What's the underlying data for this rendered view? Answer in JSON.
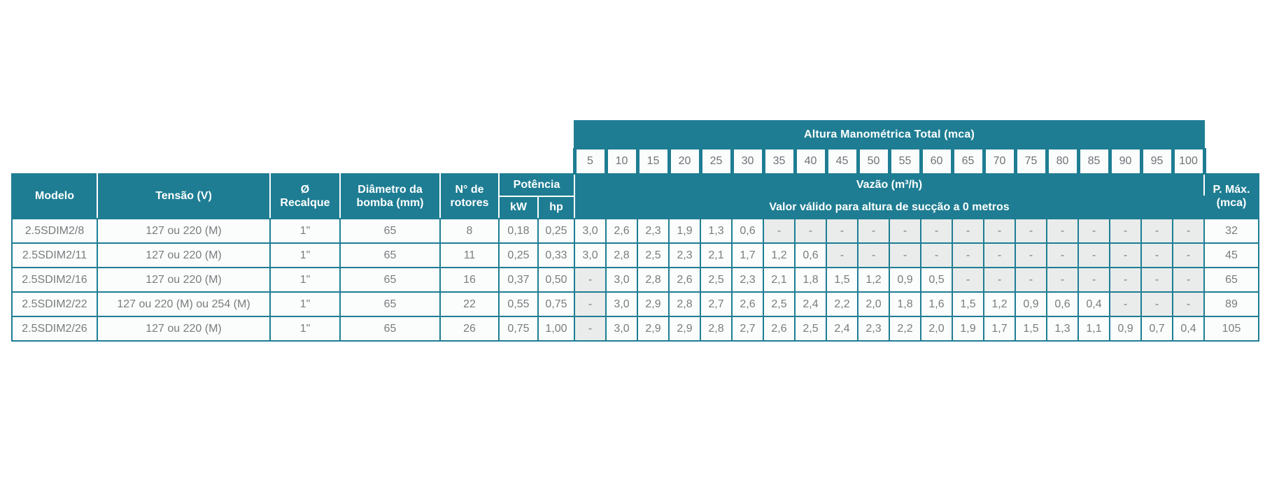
{
  "table": {
    "altura_header": "Altura Manométrica Total (mca)",
    "tick_values": [
      "5",
      "10",
      "15",
      "20",
      "25",
      "30",
      "35",
      "40",
      "45",
      "50",
      "55",
      "60",
      "65",
      "70",
      "75",
      "80",
      "85",
      "90",
      "95",
      "100"
    ],
    "columns": {
      "modelo": "Modelo",
      "tensao": "Tensão (V)",
      "recalque_line1": "Ø",
      "recalque_line2": "Recalque",
      "diametro_line1": "Diâmetro da",
      "diametro_line2": "bomba (mm)",
      "rotores_line1": "N° de",
      "rotores_line2": "rotores",
      "potencia": "Potência",
      "kw": "kW",
      "hp": "hp",
      "vazao": "Vazão (m³/h)",
      "vazao_sub": "Valor válido para altura de sucção a 0 metros",
      "pmax_line1": "P. Máx.",
      "pmax_line2": "(mca)"
    },
    "rows": [
      {
        "modelo": "2.5SDIM2/8",
        "tensao": "127 ou 220 (M)",
        "recalque": "1\"",
        "diametro": "65",
        "rotores": "8",
        "kw": "0,18",
        "hp": "0,25",
        "vazao": [
          "3,0",
          "2,6",
          "2,3",
          "1,9",
          "1,3",
          "0,6",
          "-",
          "-",
          "-",
          "-",
          "-",
          "-",
          "-",
          "-",
          "-",
          "-",
          "-",
          "-",
          "-",
          "-"
        ],
        "pmax": "32"
      },
      {
        "modelo": "2.5SDIM2/11",
        "tensao": "127 ou 220 (M)",
        "recalque": "1\"",
        "diametro": "65",
        "rotores": "11",
        "kw": "0,25",
        "hp": "0,33",
        "vazao": [
          "3,0",
          "2,8",
          "2,5",
          "2,3",
          "2,1",
          "1,7",
          "1,2",
          "0,6",
          "-",
          "-",
          "-",
          "-",
          "-",
          "-",
          "-",
          "-",
          "-",
          "-",
          "-",
          "-"
        ],
        "pmax": "45"
      },
      {
        "modelo": "2.5SDIM2/16",
        "tensao": "127 ou 220 (M)",
        "recalque": "1\"",
        "diametro": "65",
        "rotores": "16",
        "kw": "0,37",
        "hp": "0,50",
        "vazao": [
          "-",
          "3,0",
          "2,8",
          "2,6",
          "2,5",
          "2,3",
          "2,1",
          "1,8",
          "1,5",
          "1,2",
          "0,9",
          "0,5",
          "-",
          "-",
          "-",
          "-",
          "-",
          "-",
          "-",
          "-"
        ],
        "pmax": "65"
      },
      {
        "modelo": "2.5SDIM2/22",
        "tensao": "127 ou 220 (M) ou 254 (M)",
        "recalque": "1\"",
        "diametro": "65",
        "rotores": "22",
        "kw": "0,55",
        "hp": "0,75",
        "vazao": [
          "-",
          "3,0",
          "2,9",
          "2,8",
          "2,7",
          "2,6",
          "2,5",
          "2,4",
          "2,2",
          "2,0",
          "1,8",
          "1,6",
          "1,5",
          "1,2",
          "0,9",
          "0,6",
          "0,4",
          "-",
          "-",
          "-"
        ],
        "pmax": "89"
      },
      {
        "modelo": "2.5SDIM2/26",
        "tensao": "127 ou 220 (M)",
        "recalque": "1\"",
        "diametro": "65",
        "rotores": "26",
        "kw": "0,75",
        "hp": "1,00",
        "vazao": [
          "-",
          "3,0",
          "2,9",
          "2,9",
          "2,8",
          "2,7",
          "2,6",
          "2,5",
          "2,4",
          "2,3",
          "2,2",
          "2,0",
          "1,9",
          "1,7",
          "1,5",
          "1,3",
          "1,1",
          "0,9",
          "0,7",
          "0,4"
        ],
        "pmax": "105"
      }
    ],
    "colors": {
      "teal": "#1e7d93",
      "cell_bg": "#fbfdfd",
      "dash_bg": "#e9eceb",
      "text_gray": "#797b7e"
    }
  }
}
